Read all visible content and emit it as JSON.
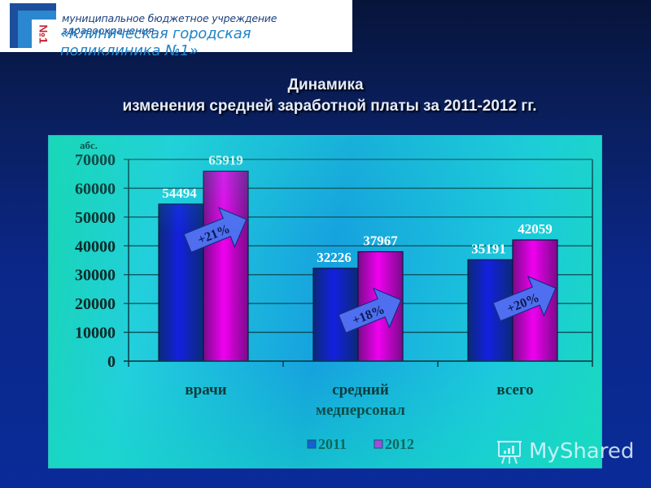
{
  "header": {
    "logo_text": "№1",
    "org_line1": "муниципальное бюджетное учреждение здравоохранения",
    "org_line2": "«Клиническая городская поликлиника №1»"
  },
  "title": {
    "line1": "Динамика",
    "line2": "изменения средней  заработной платы за 2011-2012 гг."
  },
  "watermark": {
    "text": "MyShared"
  },
  "colors": {
    "series_2011": "#1420e0",
    "series_2012": "#f000f0",
    "arrow_fill": "#4f6ff0",
    "label_text": "#ffffff",
    "axis_text": "#0b2a2a"
  },
  "chart_data": {
    "type": "bar",
    "title": "Динамика изменения средней заработной платы за 2011-2012 гг.",
    "ylabel": "абс.",
    "xlabel": "",
    "categories": [
      "врачи",
      "средний медперсонал",
      "всего"
    ],
    "category_lines": [
      [
        "врачи"
      ],
      [
        "средний",
        "медперсонал"
      ],
      [
        "всего"
      ]
    ],
    "series": [
      {
        "name": "2011",
        "values": [
          54494,
          32226,
          35191
        ]
      },
      {
        "name": "2012",
        "values": [
          65919,
          37967,
          42059
        ]
      }
    ],
    "growth_annotations": [
      "+21%",
      "+18%",
      "+20%"
    ],
    "yticks": [
      0,
      10000,
      20000,
      30000,
      40000,
      50000,
      60000,
      70000
    ],
    "ylim": [
      0,
      70000
    ],
    "grid": true,
    "legend_position": "bottom"
  }
}
